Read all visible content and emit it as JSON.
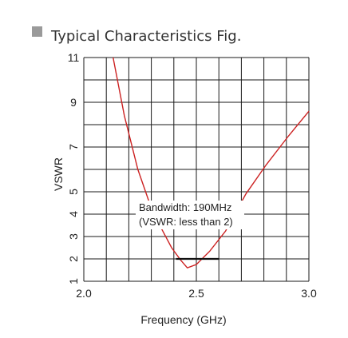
{
  "header": {
    "title": "Typical Characteristics Fig.",
    "marker_color": "#9a9a9a"
  },
  "chart_data": {
    "type": "line",
    "title": "Typical Characteristics Fig.",
    "xlabel": "Frequency (GHz)",
    "ylabel": "VSWR",
    "xlim": [
      2.0,
      3.0
    ],
    "ylim": [
      1,
      11
    ],
    "x_ticks": [
      {
        "value": 2.0,
        "label": "2.0"
      },
      {
        "value": 2.5,
        "label": "2.5"
      },
      {
        "value": 3.0,
        "label": "3.0"
      }
    ],
    "y_ticks": [
      {
        "value": 1,
        "label": "1",
        "rotated": true
      },
      {
        "value": 2,
        "label": "2",
        "rotated": true
      },
      {
        "value": 3,
        "label": "3",
        "rotated": true
      },
      {
        "value": 4,
        "label": "4",
        "rotated": true
      },
      {
        "value": 5,
        "label": "5",
        "rotated": true
      },
      {
        "value": 7,
        "label": "7",
        "rotated": true
      },
      {
        "value": 9,
        "label": "9",
        "rotated": false
      },
      {
        "value": 11,
        "label": "11",
        "rotated": false
      }
    ],
    "grid": true,
    "grid_color": "#1a1a1a",
    "series": [
      {
        "color": "#cc2222",
        "x": [
          2.13,
          2.18,
          2.24,
          2.29,
          2.34,
          2.39,
          2.43,
          2.46,
          2.5,
          2.56,
          2.63,
          2.72,
          2.81,
          2.91,
          3.0
        ],
        "y": [
          11.0,
          8.4,
          6.0,
          4.55,
          3.45,
          2.5,
          1.95,
          1.6,
          1.75,
          2.35,
          3.25,
          4.9,
          6.2,
          7.5,
          8.6
        ]
      }
    ],
    "bandwidth_marker": {
      "x_start": 2.41,
      "x_end": 2.6,
      "y": 2.0,
      "color": "#111111"
    },
    "annotations": [
      {
        "line1": "Bandwidth: 190MHz",
        "line2": "(VSWR: less than 2)"
      }
    ]
  }
}
